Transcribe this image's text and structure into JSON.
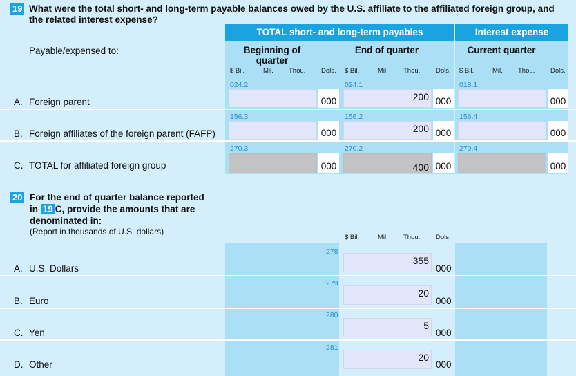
{
  "q19": {
    "number": "19",
    "text_line1": "What were the total short- and long-term payable balances owed by the U.S. affiliate to the affiliated foreign group, and",
    "text_line2": "the related interest expense?",
    "header_total": "TOTAL short- and long-term payables",
    "header_interest": "Interest expense",
    "payable_label": "Payable/expensed to:",
    "sub_beginning_line1": "Beginning of",
    "sub_beginning_line2": "quarter",
    "sub_end": "End of quarter",
    "sub_current": "Current quarter",
    "units": {
      "bil": "$ Bil.",
      "mil": "Mil.",
      "thou": "Thou.",
      "dols": "Dols."
    },
    "rows": [
      {
        "letter": "A.",
        "label": "Foreign parent",
        "code_begin": "024.2",
        "code_end": "024.1",
        "code_interest": "018.1",
        "begin_value": "",
        "end_value": "200",
        "interest_value": "",
        "dols_begin": "000",
        "dols_end": "000",
        "dols_interest": "000"
      },
      {
        "letter": "B.",
        "label": "Foreign affiliates of the foreign parent (FAFP)",
        "code_begin": "156.3",
        "code_end": "156.2",
        "code_interest": "156.4",
        "begin_value": "",
        "end_value": "200",
        "interest_value": "",
        "dols_begin": "000",
        "dols_end": "000",
        "dols_interest": "000"
      },
      {
        "letter": "C.",
        "label": "TOTAL for affiliated foreign group",
        "code_begin": "270.3",
        "code_end": "270.2",
        "code_interest": "270.4",
        "begin_value": "",
        "end_value": "400",
        "interest_value": "",
        "dols_begin": "000",
        "dols_end": "000",
        "dols_interest": "000"
      }
    ]
  },
  "q20": {
    "number": "20",
    "line1": "For the end of quarter balance reported",
    "line2_pre": "in",
    "line2_ref": "19",
    "line2_post": "C, provide the amounts that are",
    "line3": "denominated in:",
    "note": "(Report in thousands of U.S. dollars)",
    "units": {
      "bil": "$ Bil.",
      "mil": "Mil.",
      "thou": "Thou.",
      "dols": "Dols."
    },
    "rows": [
      {
        "letter": "A.",
        "label": "U.S. Dollars",
        "code": "278",
        "value": "355",
        "dols": "000"
      },
      {
        "letter": "B.",
        "label": "Euro",
        "code": "279",
        "value": "20",
        "dols": "000"
      },
      {
        "letter": "C.",
        "label": "Yen",
        "code": "280",
        "value": "5",
        "dols": "000"
      },
      {
        "letter": "D.",
        "label": "Other",
        "code": "281",
        "value": "20",
        "dols": "000"
      }
    ]
  },
  "colors": {
    "background": "#d4eefc",
    "header_band": "#1aa3e0",
    "column_shade": "#aadff6",
    "input": "#e2e6fb",
    "computed": "#c3c3c3",
    "code_text": "#2b8fc4"
  }
}
